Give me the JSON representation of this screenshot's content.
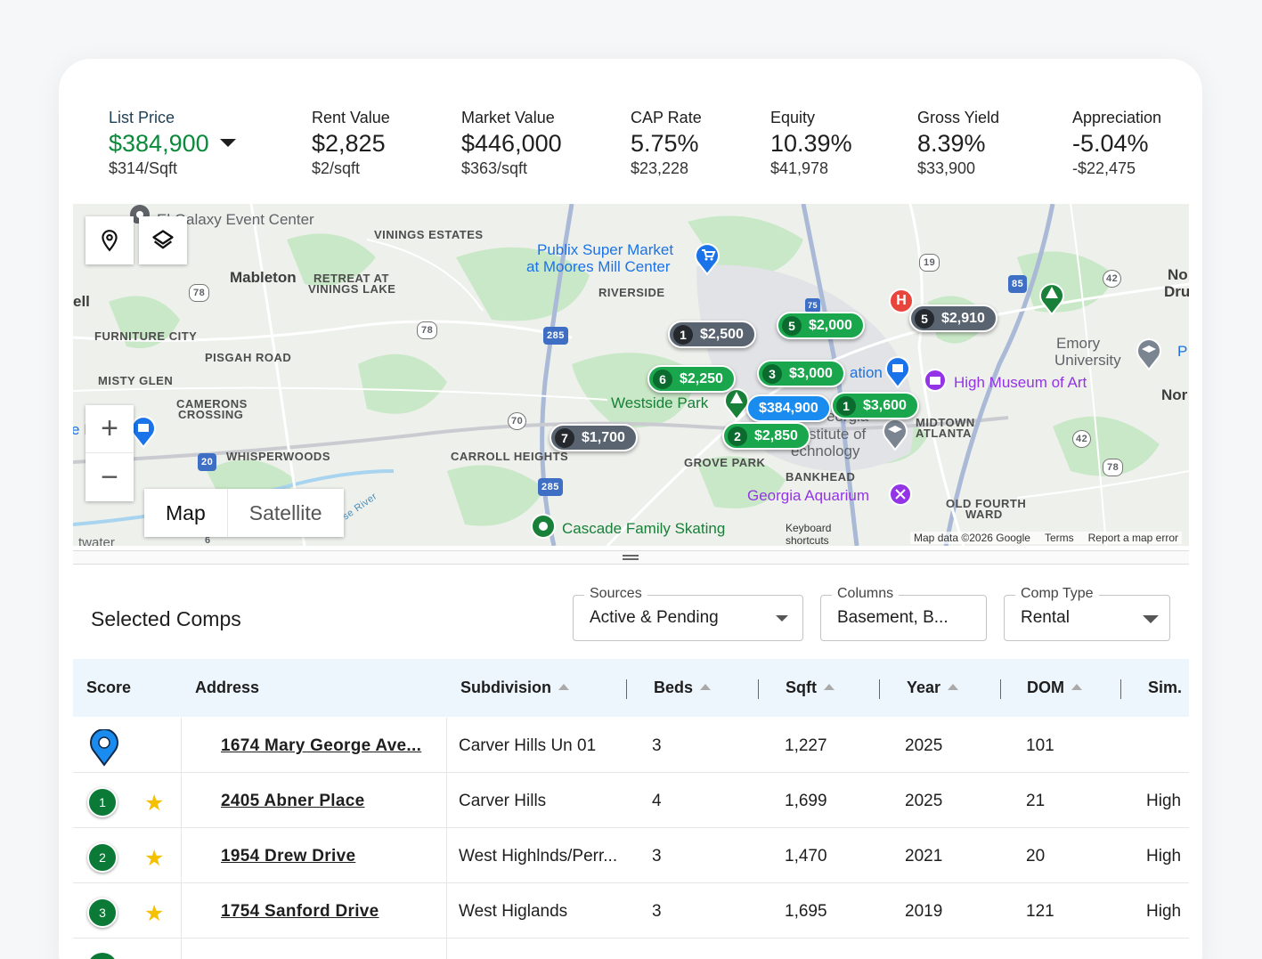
{
  "metrics": [
    {
      "label": "List Price",
      "value": "$384,900",
      "sub": "$314/Sqft"
    },
    {
      "label": "Rent Value",
      "value": "$2,825",
      "sub": "$2/sqft"
    },
    {
      "label": "Market Value",
      "value": "$446,000",
      "sub": "$363/sqft"
    },
    {
      "label": "CAP Rate",
      "value": "5.75%",
      "sub": "$23,228"
    },
    {
      "label": "Equity",
      "value": "10.39%",
      "sub": "$41,978"
    },
    {
      "label": "Gross Yield",
      "value": "8.39%",
      "sub": "$33,900"
    },
    {
      "label": "Appreciation",
      "value": "-5.04%",
      "sub": "-$22,475"
    }
  ],
  "map": {
    "labels": {
      "galaxy": "El Galaxy Event Center",
      "vinings": "VININGS ESTATES",
      "publix1": "Publix Super Market",
      "publix2": "at Moores Mill Center",
      "mableton": "Mableton",
      "retreat1": "RETREAT AT",
      "retreat2": "VININGS LAKE",
      "riverside": "RIVERSIDE",
      "ell": "ell",
      "furniture": "FURNITURE CITY",
      "pisgah": "PISGAH ROAD",
      "misty": "MISTY GLEN",
      "camerons1": "CAMERONS",
      "camerons2": "CROSSING",
      "westside": "Westside Park",
      "whisperwoods": "WHISPERWOODS",
      "carroll": "CARROLL HEIGHTS",
      "grove": "GROVE PARK",
      "bankhead": "BANKHEAD",
      "aquarium": "Georgia Aquarium",
      "cascade": "Cascade Family Skating",
      "midtown1": "MIDTOWN",
      "midtown2": "ATLANTA",
      "oldfourth1": "OLD FOURTH",
      "oldfourth2": "WARD",
      "emory1": "Emory",
      "emory2": "University",
      "museum": "High Museum of Art",
      "nodruid1": "No",
      "nodruid2": "Druid",
      "nor": "Nor",
      "p": "P",
      "ation": "ation",
      "georgia": "eorgia",
      "institute": "stitute of",
      "technology": "echnology",
      "twater": "twater",
      "river": "se River",
      "e": "e I"
    },
    "shields": [
      "78",
      "78",
      "285",
      "285",
      "70",
      "20",
      "19",
      "85",
      "42",
      "42",
      "78",
      "75",
      "6"
    ],
    "pins": [
      {
        "num": "1",
        "price": "$2,500",
        "kind": "d"
      },
      {
        "num": "5",
        "price": "$2,000",
        "kind": "g"
      },
      {
        "num": "5",
        "price": "$2,910",
        "kind": "d"
      },
      {
        "num": "6",
        "price": "$2,250",
        "kind": "g"
      },
      {
        "num": "3",
        "price": "$3,000",
        "kind": "g"
      },
      {
        "num": "",
        "price": "$384,900",
        "kind": "b"
      },
      {
        "num": "1",
        "price": "$3,600",
        "kind": "g"
      },
      {
        "num": "7",
        "price": "$1,700",
        "kind": "d"
      },
      {
        "num": "2",
        "price": "$2,850",
        "kind": "g"
      }
    ],
    "toggle": {
      "map": "Map",
      "satellite": "Satellite"
    },
    "zoom_in": "+",
    "zoom_out": "−",
    "hospital": "H",
    "keyboard": "Keyboard shortcuts",
    "attribution": {
      "data": "Map data ©2026 Google",
      "terms": "Terms",
      "report": "Report a map error"
    }
  },
  "comps": {
    "title": "Selected Comps",
    "sources": {
      "legend": "Sources",
      "value": "Active & Pending"
    },
    "columns": {
      "legend": "Columns",
      "value": "Basement, B..."
    },
    "comp_type": {
      "legend": "Comp Type",
      "value": "Rental"
    },
    "headers": {
      "score": "Score",
      "address": "Address",
      "subdivision": "Subdivision",
      "beds": "Beds",
      "sqft": "Sqft",
      "year": "Year",
      "dom": "DOM",
      "sim": "Sim."
    },
    "rows": [
      {
        "badge": "",
        "address": "1674 Mary George Ave...",
        "subdivision": "Carver Hills Un 01",
        "beds": "3",
        "sqft": "1,227",
        "year": "2025",
        "dom": "101",
        "sim": ""
      },
      {
        "badge": "1",
        "address": "2405 Abner Place",
        "subdivision": "Carver Hills",
        "beds": "4",
        "sqft": "1,699",
        "year": "2025",
        "dom": "21",
        "sim": "High"
      },
      {
        "badge": "2",
        "address": "1954 Drew Drive",
        "subdivision": "West Highlnds/Perr...",
        "beds": "3",
        "sqft": "1,470",
        "year": "2021",
        "dom": "20",
        "sim": "High"
      },
      {
        "badge": "3",
        "address": "1754 Sanford Drive",
        "subdivision": "West Higlands",
        "beds": "3",
        "sqft": "1,695",
        "year": "2019",
        "dom": "121",
        "sim": "High"
      }
    ]
  }
}
